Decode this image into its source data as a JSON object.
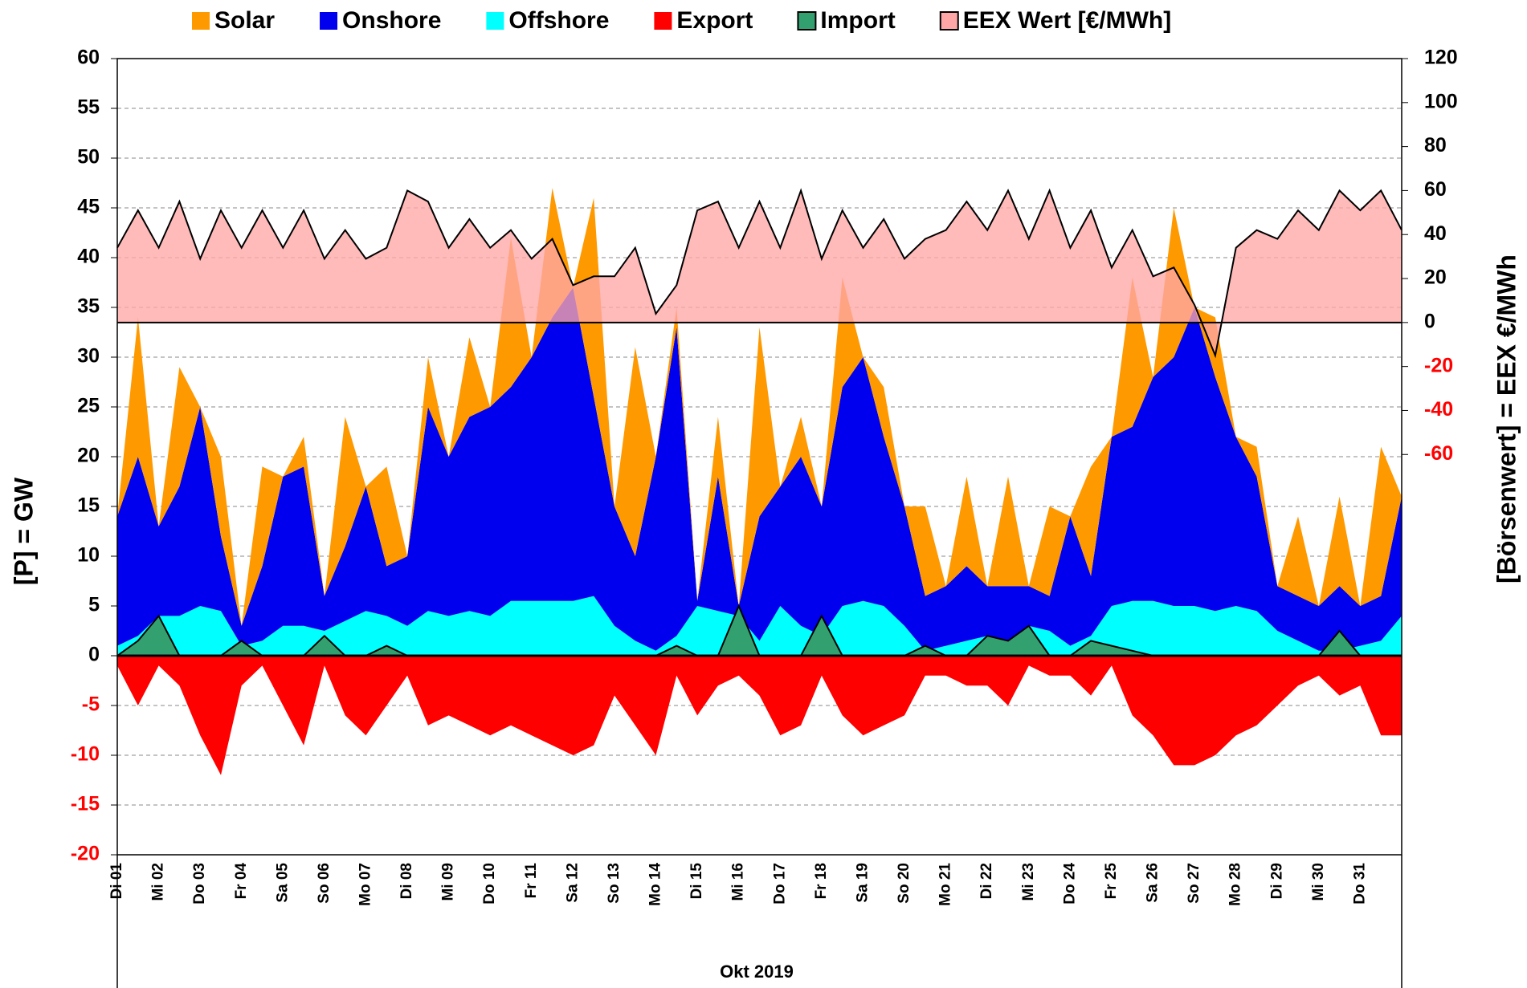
{
  "chart_data": {
    "type": "area",
    "xlabel": "Okt 2019",
    "ylabel": "[P] = GW",
    "y2label": "[Börsenwert] = EEX  €/MWh",
    "categories": [
      "Di 01",
      null,
      "Mi 02",
      null,
      "Do 03",
      null,
      "Fr 04",
      null,
      "Sa 05",
      null,
      "So 06",
      null,
      "Mo 07",
      null,
      "Di 08",
      null,
      "Mi 09",
      null,
      "Do 10",
      null,
      "Fr 11",
      null,
      "Sa 12",
      null,
      "So 13",
      null,
      "Mo 14",
      null,
      "Di 15",
      null,
      "Mi 16",
      null,
      "Do 17",
      null,
      "Fr 18",
      null,
      "Sa 19",
      null,
      "So 20",
      null,
      "Mo 21",
      null,
      "Di 22",
      null,
      "Mi 23",
      null,
      "Do 24",
      null,
      "Fr 25",
      null,
      "Sa 26",
      null,
      "So 27",
      null,
      "Mo 28",
      null,
      "Di 29",
      null,
      "Mi 30",
      null,
      "Do 31",
      null,
      null
    ],
    "series": [
      {
        "name": "Solar",
        "color": "#ff9900",
        "stacked": true,
        "values": [
          0,
          14,
          0,
          12,
          0,
          8,
          0,
          10,
          0,
          3,
          0,
          13,
          0,
          10,
          0,
          5,
          0,
          8,
          0,
          15,
          0,
          13,
          0,
          20,
          0,
          21,
          0,
          2,
          0,
          6,
          0,
          19,
          0,
          4,
          0,
          11,
          0,
          5,
          0,
          9,
          0,
          9,
          0,
          11,
          0,
          9,
          0,
          11,
          0,
          15,
          0,
          15,
          0,
          6,
          0,
          3,
          0,
          8,
          0,
          9,
          0,
          15,
          0
        ]
      },
      {
        "name": "Onshore",
        "color": "#0000ee",
        "stacked": true,
        "values": [
          13,
          18,
          9,
          13,
          20,
          7.5,
          2,
          7.5,
          15,
          16,
          3.5,
          7.5,
          12.5,
          5,
          7,
          20.5,
          16,
          19.5,
          21,
          21.5,
          24.5,
          28.5,
          31.5,
          20,
          12,
          8.5,
          19.5,
          31,
          0.5,
          13.5,
          1,
          12.5,
          12,
          17,
          13,
          22,
          24.5,
          17,
          12,
          5.5,
          6,
          7.5,
          5,
          5.5,
          4,
          3.5,
          13,
          6,
          17,
          17.5,
          22.5,
          25,
          30,
          23.5,
          17,
          13.5,
          4.5,
          4.5,
          4.5,
          6.5,
          4,
          4.5,
          12
        ]
      },
      {
        "name": "Offshore",
        "color": "#00ffff",
        "stacked": true,
        "values": [
          1,
          2,
          4,
          4,
          5,
          4.5,
          1,
          1.5,
          3,
          3,
          2.5,
          3.5,
          4.5,
          4,
          3,
          4.5,
          4,
          4.5,
          4,
          5.5,
          5.5,
          5.5,
          5.5,
          6,
          3,
          1.5,
          0.5,
          2,
          5,
          4.5,
          4,
          1.5,
          5,
          3,
          2,
          5,
          5.5,
          5,
          3,
          0.5,
          1,
          1.5,
          2,
          1.5,
          3,
          2.5,
          1,
          2,
          5,
          5.5,
          5.5,
          5,
          5,
          4.5,
          5,
          4.5,
          2.5,
          1.5,
          0.5,
          0.5,
          1,
          1.5,
          4
        ]
      },
      {
        "name": "Export",
        "color": "#ff0000",
        "values": [
          -1,
          -5,
          -1,
          -3,
          -8,
          -12,
          -3,
          -1,
          -5,
          -9,
          -1,
          -6,
          -8,
          -5,
          -2,
          -7,
          -6,
          -7,
          -8,
          -7,
          -8,
          -9,
          -10,
          -9,
          -4,
          -7,
          -10,
          -2,
          -6,
          -3,
          -2,
          -4,
          -8,
          -7,
          -2,
          -6,
          -8,
          -7,
          -6,
          -2,
          -2,
          -3,
          -3,
          -5,
          -1,
          -2,
          -2,
          -4,
          -1,
          -6,
          -8,
          -11,
          -11,
          -10,
          -8,
          -7,
          -5,
          -3,
          -2,
          -4,
          -3,
          -8,
          -8
        ]
      },
      {
        "name": "Import",
        "color": "#33a070",
        "outline": "#000000",
        "values": [
          0,
          1.5,
          4,
          0,
          0,
          0,
          1.5,
          0,
          0,
          0,
          2,
          0,
          0,
          1,
          0,
          0,
          0,
          0,
          0,
          0,
          0,
          0,
          0,
          0,
          0,
          0,
          0,
          1,
          0,
          0,
          5,
          0,
          0,
          0,
          4,
          0,
          0,
          0,
          0,
          1,
          0,
          0,
          2,
          1.5,
          3,
          0,
          0,
          1.5,
          1,
          0.5,
          0,
          0,
          0,
          0,
          0,
          0,
          0,
          0,
          0,
          2.5,
          0,
          0,
          0
        ]
      },
      {
        "name": "EEX Wert [€/MWh]",
        "color": "#ffa6a6",
        "outline": "#000000",
        "axis": "y2",
        "values": [
          34,
          51,
          34,
          55,
          29,
          51,
          34,
          51,
          34,
          51,
          29,
          42,
          29,
          34,
          60,
          55,
          34,
          47,
          34,
          42,
          29,
          38,
          17,
          21,
          21,
          34,
          4,
          17,
          51,
          55,
          34,
          55,
          34,
          60,
          29,
          51,
          34,
          47,
          29,
          38,
          42,
          55,
          42,
          60,
          38,
          60,
          34,
          51,
          25,
          42,
          21,
          25,
          8,
          -15,
          34,
          42,
          38,
          51,
          42,
          60,
          51,
          60,
          42
        ]
      }
    ],
    "ylim": [
      -20,
      60
    ],
    "yticks": [
      -20,
      -15,
      -10,
      -5,
      0,
      5,
      10,
      15,
      20,
      25,
      30,
      35,
      40,
      45,
      50,
      55,
      60
    ],
    "y2lim": [
      -242,
      120
    ],
    "y2ticks": [
      -60,
      -40,
      -20,
      0,
      20,
      40,
      60,
      80,
      100,
      120
    ],
    "negative_tick_color": "#ff0000",
    "grid": true,
    "legend": "top"
  }
}
